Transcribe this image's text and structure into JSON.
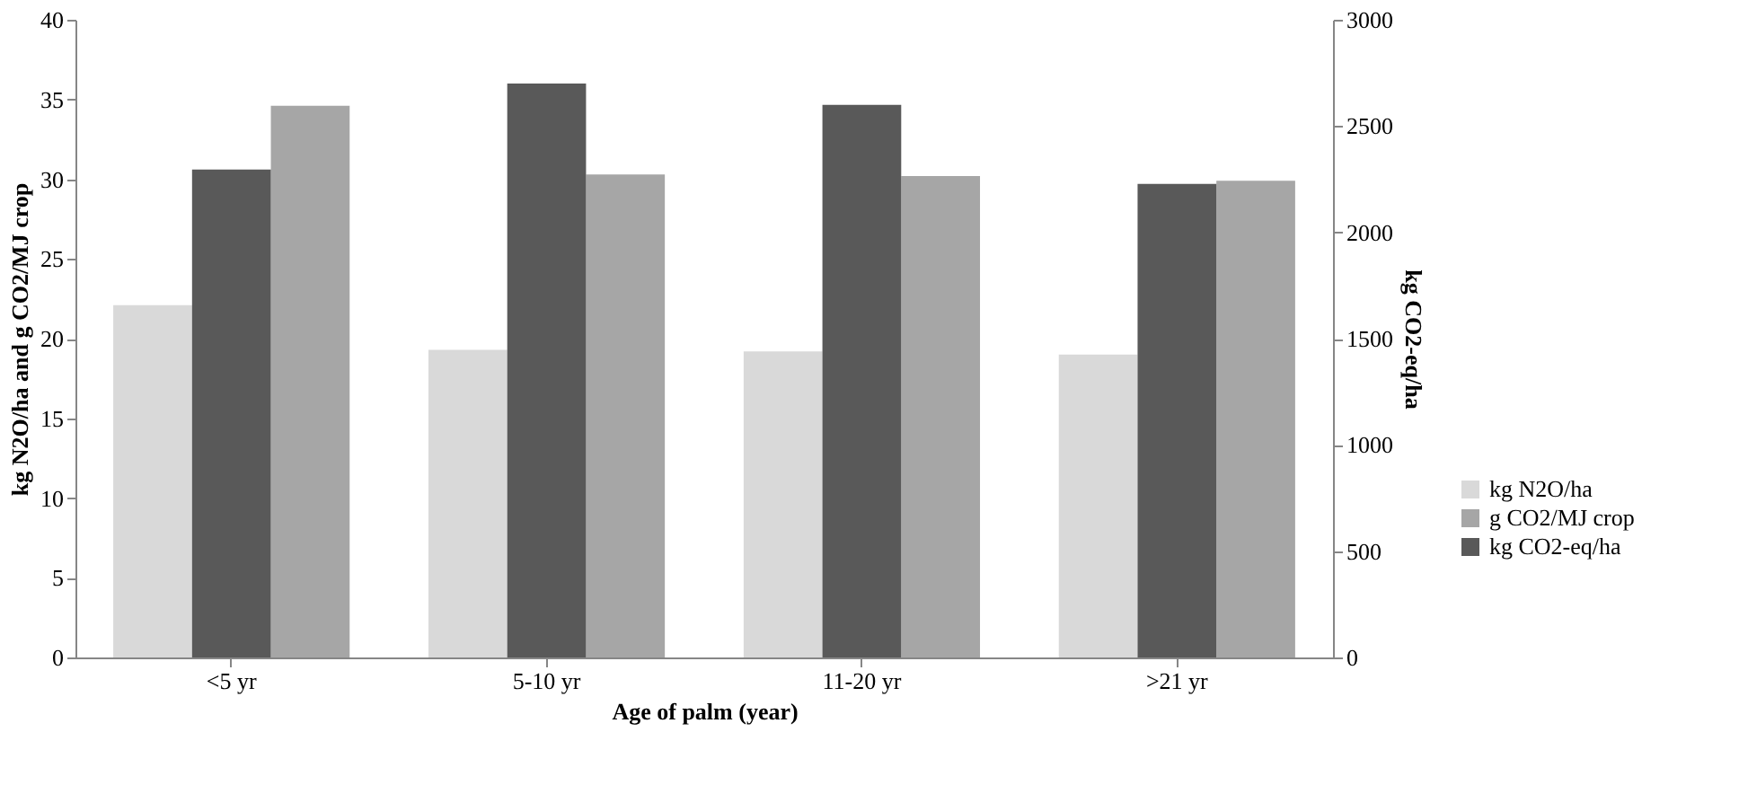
{
  "chart_data": {
    "type": "bar",
    "xlabel": "Age of palm (year)",
    "ylabel": "kg N2O/ha and g CO2/MJ crop",
    "y2label": "kg CO2-eq/ha",
    "categories": [
      "<5 yr",
      "5-10 yr",
      "11-20 yr",
      ">21 yr"
    ],
    "series": [
      {
        "name": "kg N2O/ha",
        "color": "#d9d9d9",
        "values": [
          22.1,
          19.3,
          19.2,
          19.0
        ]
      },
      {
        "name": "kg CO2-eq/ha",
        "color": "#595959",
        "axis": "y2",
        "values": [
          2295,
          2700,
          2600,
          2228
        ]
      },
      {
        "name": "g CO2/MJ crop",
        "color": "#a6a6a6",
        "values": [
          34.6,
          30.3,
          30.2,
          29.9
        ]
      }
    ],
    "ylim": [
      0,
      40
    ],
    "yticks": [
      0,
      5,
      10,
      15,
      20,
      25,
      30,
      35,
      40
    ],
    "y2lim": [
      0,
      3000
    ],
    "y2ticks": [
      0,
      500,
      1000,
      1500,
      2000,
      2500,
      3000
    ],
    "grid": false,
    "legend": "right"
  }
}
